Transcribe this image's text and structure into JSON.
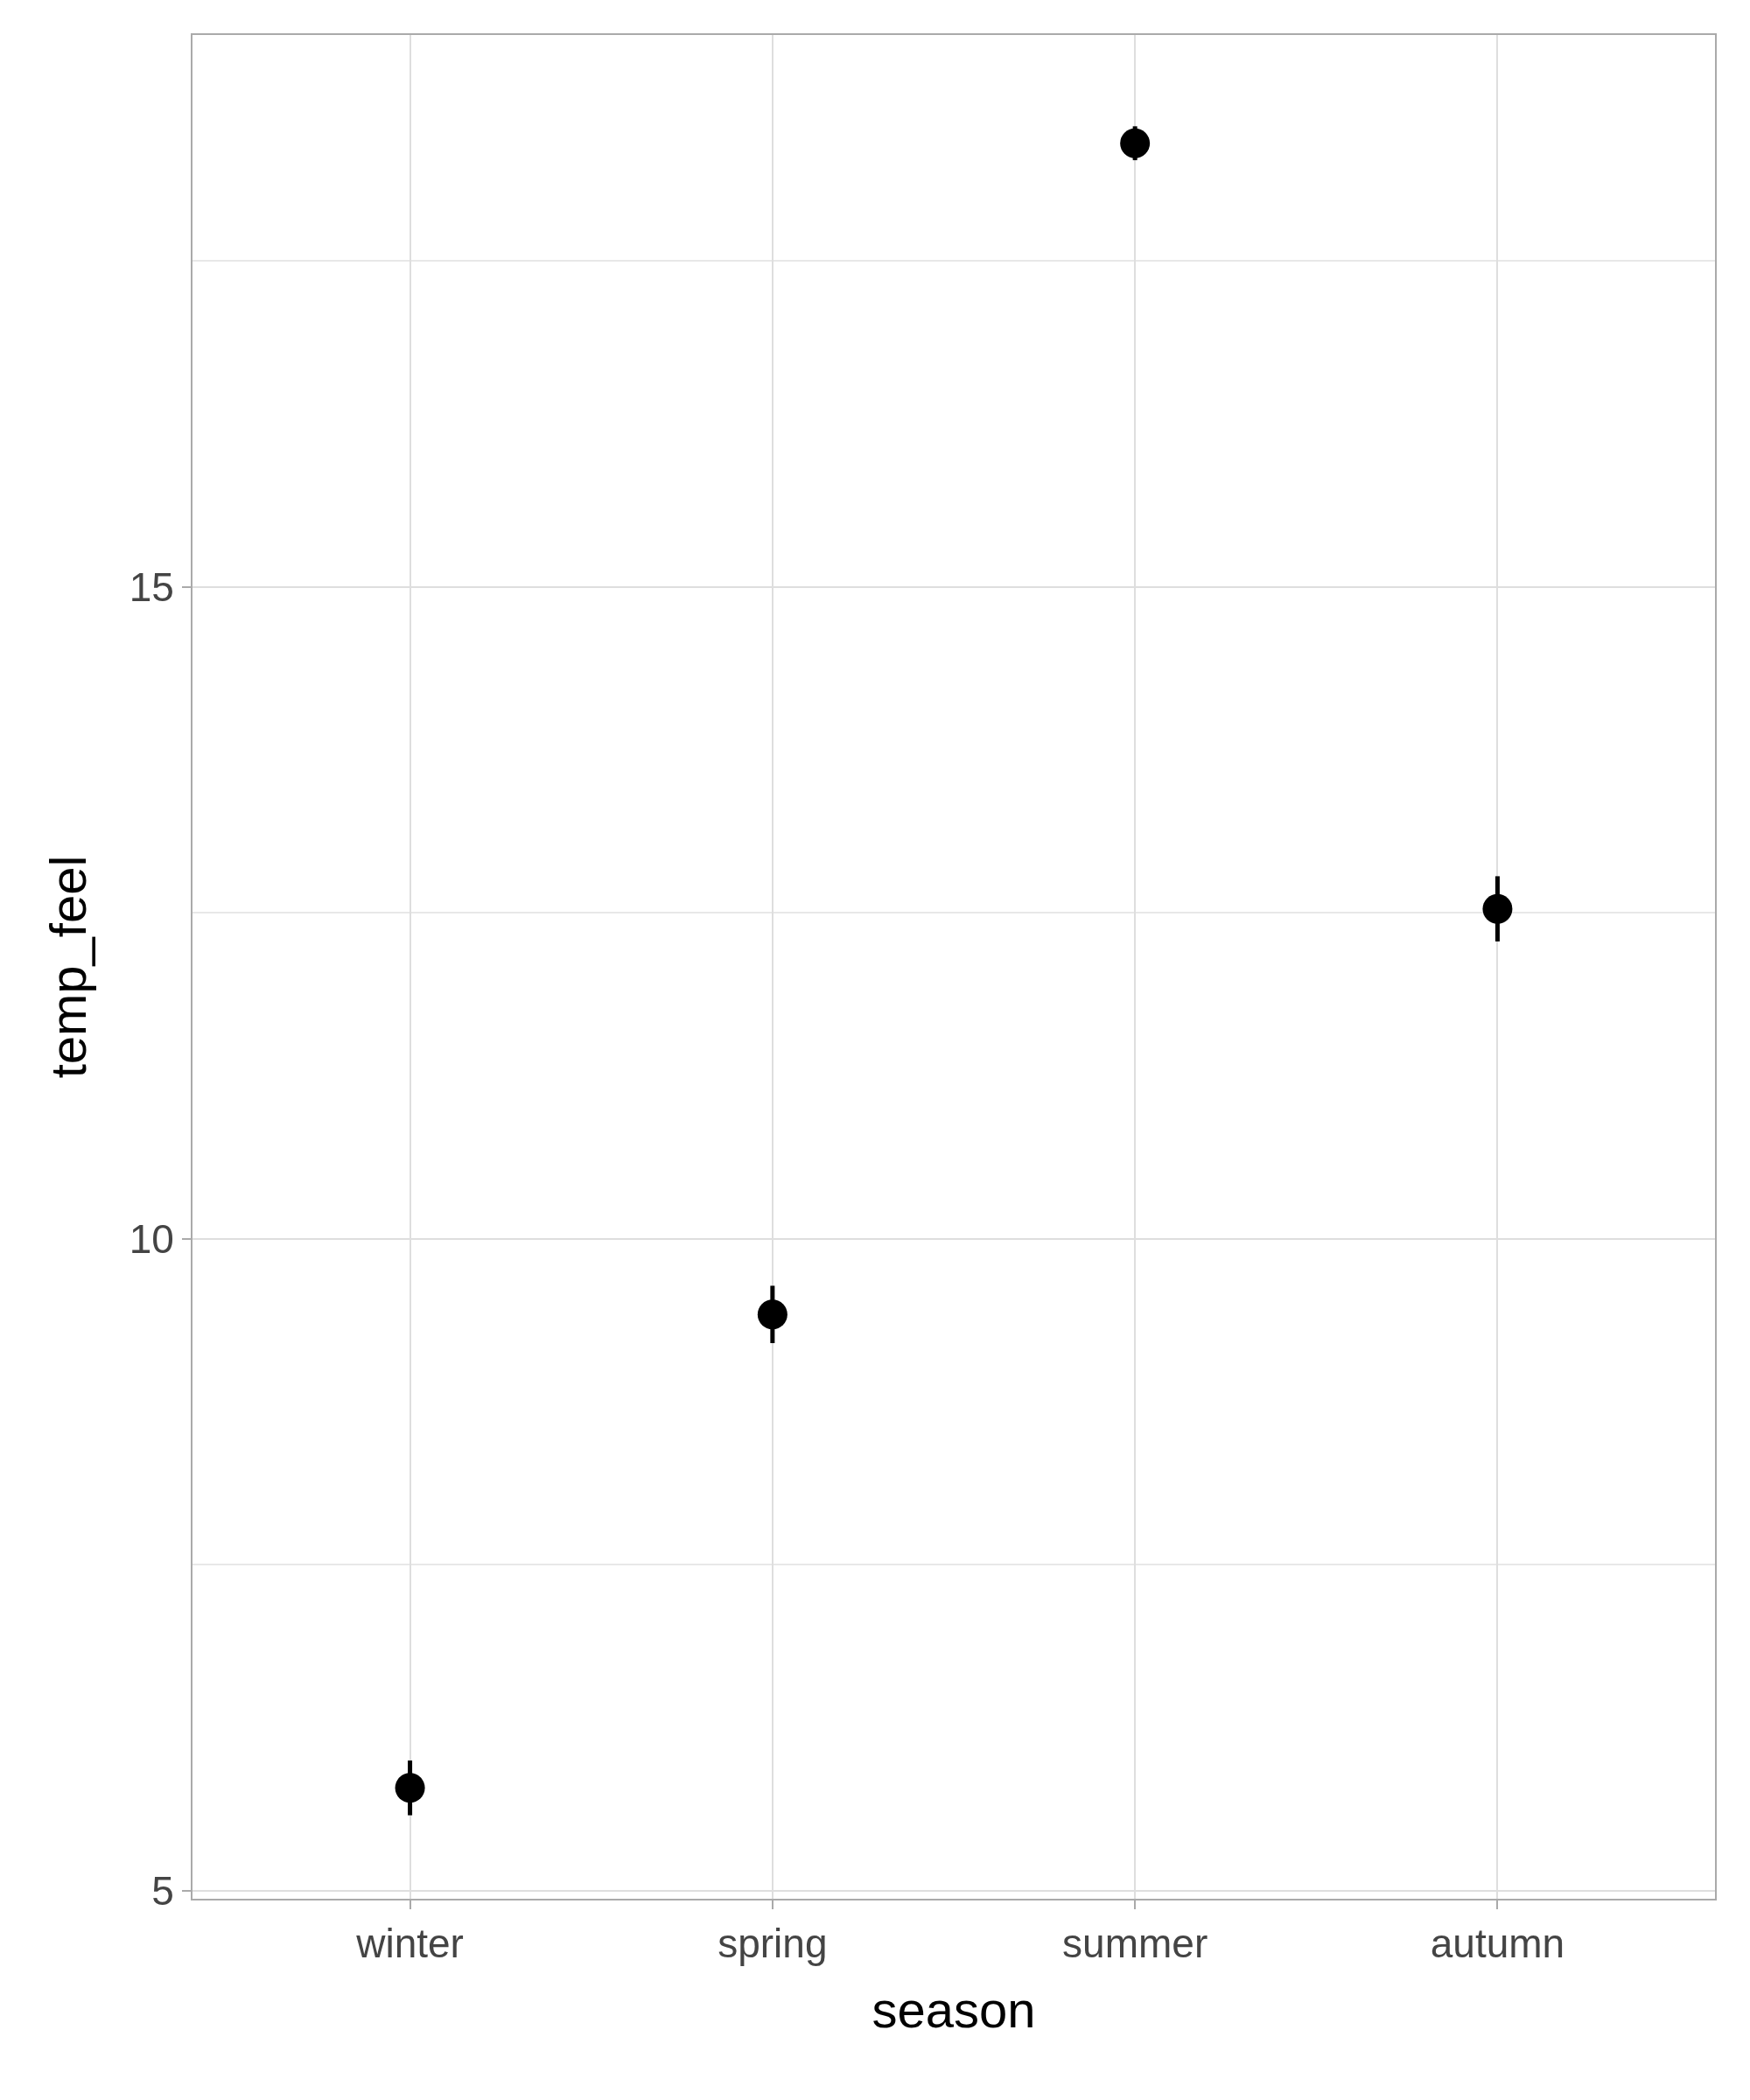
{
  "chart_data": {
    "type": "scatter",
    "xlabel": "season",
    "ylabel": "temp_feel",
    "categories": [
      "winter",
      "spring",
      "summer",
      "autumn"
    ],
    "values": [
      5.79,
      9.42,
      18.4,
      12.53
    ],
    "errors": [
      0.21,
      0.22,
      0.13,
      0.25
    ],
    "color": "#000000",
    "marker": "circle",
    "grid": true,
    "ylim": [
      4.94,
      19.23
    ],
    "yticks": [
      5,
      {
        "value": 7.5,
        "label": null
      },
      10,
      {
        "value": 12.5,
        "label": null
      },
      15,
      {
        "value": 17.5,
        "label": null
      }
    ]
  }
}
